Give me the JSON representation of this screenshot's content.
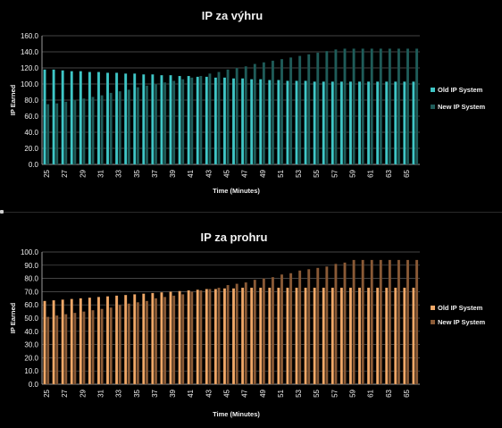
{
  "chart_data": [
    {
      "type": "bar",
      "title": "IP za výhru",
      "xlabel": "Time  (Minutes)",
      "ylabel": "IP Earned",
      "ylim": [
        0,
        160
      ],
      "yticks": [
        "0.0",
        "20.0",
        "40.0",
        "60.0",
        "80.0",
        "100.0",
        "120.0",
        "140.0",
        "160.0"
      ],
      "xtick_labels": [
        "25",
        "27",
        "29",
        "31",
        "33",
        "35",
        "37",
        "39",
        "41",
        "43",
        "45",
        "47",
        "49",
        "51",
        "53",
        "55",
        "57",
        "59",
        "61",
        "63",
        "65"
      ],
      "categories": [
        "25",
        "26",
        "27",
        "28",
        "29",
        "30",
        "31",
        "32",
        "33",
        "34",
        "35",
        "36",
        "37",
        "38",
        "39",
        "40",
        "41",
        "42",
        "43",
        "44",
        "45",
        "46",
        "47",
        "48",
        "49",
        "50",
        "51",
        "52",
        "53",
        "54",
        "55",
        "56",
        "57",
        "58",
        "59",
        "60",
        "61",
        "62",
        "63",
        "64",
        "65",
        "66"
      ],
      "legend": "right",
      "grid": true,
      "series": [
        {
          "name": "Old IP System",
          "color": "#3fc6c6",
          "values": [
            118,
            118,
            117,
            116,
            116,
            115,
            115,
            114,
            114,
            113,
            113,
            112,
            112,
            111,
            111,
            110,
            110,
            109,
            109,
            108,
            108,
            107,
            107,
            106,
            106,
            105,
            105,
            104,
            104,
            104,
            103,
            103,
            103,
            103,
            103,
            103,
            103,
            103,
            103,
            103,
            103,
            103
          ]
        },
        {
          "name": "New IP System",
          "color": "#1f5c59",
          "values": [
            75,
            76,
            78,
            80,
            82,
            84,
            86,
            89,
            91,
            93,
            96,
            98,
            100,
            102,
            104,
            106,
            108,
            110,
            113,
            115,
            118,
            120,
            122,
            125,
            127,
            129,
            131,
            133,
            135,
            137,
            139,
            141,
            143,
            144,
            144,
            144,
            144,
            144,
            144,
            144,
            144,
            144
          ]
        }
      ]
    },
    {
      "type": "bar",
      "title": "IP za prohru",
      "xlabel": "Time  (Minutes)",
      "ylabel": "IP Earned",
      "ylim": [
        0,
        100
      ],
      "yticks": [
        "0.0",
        "10.0",
        "20.0",
        "30.0",
        "40.0",
        "50.0",
        "60.0",
        "70.0",
        "80.0",
        "90.0",
        "100.0"
      ],
      "xtick_labels": [
        "25",
        "27",
        "29",
        "31",
        "33",
        "35",
        "37",
        "39",
        "41",
        "43",
        "45",
        "47",
        "49",
        "51",
        "53",
        "55",
        "57",
        "59",
        "61",
        "63",
        "65"
      ],
      "categories": [
        "25",
        "26",
        "27",
        "28",
        "29",
        "30",
        "31",
        "32",
        "33",
        "34",
        "35",
        "36",
        "37",
        "38",
        "39",
        "40",
        "41",
        "42",
        "43",
        "44",
        "45",
        "46",
        "47",
        "48",
        "49",
        "50",
        "51",
        "52",
        "53",
        "54",
        "55",
        "56",
        "57",
        "58",
        "59",
        "60",
        "61",
        "62",
        "63",
        "64",
        "65",
        "66"
      ],
      "legend": "right",
      "grid": true,
      "series": [
        {
          "name": "Old IP System",
          "color": "#f0a868",
          "values": [
            63,
            63.5,
            64,
            64.5,
            65,
            65.5,
            66,
            66.5,
            67,
            67.5,
            68,
            68.5,
            69,
            69.5,
            70,
            70.5,
            71,
            71.5,
            72,
            72,
            72.5,
            72.5,
            73,
            73,
            73,
            73,
            73,
            73,
            73,
            73,
            73,
            73,
            73,
            73,
            73,
            73,
            73,
            73,
            73,
            73,
            73,
            73
          ]
        },
        {
          "name": "New IP System",
          "color": "#8a5a36",
          "values": [
            51,
            52,
            53,
            54,
            55,
            56,
            57,
            58,
            60,
            61,
            62,
            63,
            65,
            66,
            67,
            68,
            70,
            71,
            72,
            73,
            75,
            76,
            77,
            79,
            80,
            81,
            83,
            84,
            86,
            87,
            88,
            89,
            91,
            92,
            94,
            94,
            94,
            94,
            94,
            94,
            94,
            94
          ]
        }
      ]
    }
  ]
}
